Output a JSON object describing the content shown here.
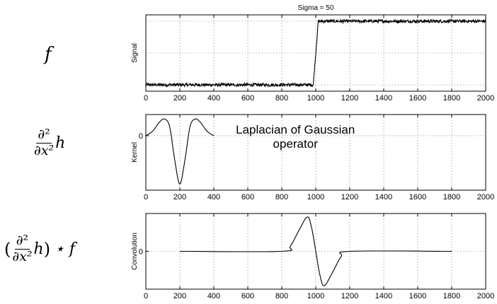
{
  "formulas": {
    "f": "f",
    "d2": "∂²",
    "dx2": "∂x²",
    "h": "h",
    "open_paren": "(",
    "close_paren": ")",
    "star_f": "⋆ f"
  },
  "chart_data": [
    {
      "type": "line",
      "title": "Sigma = 50",
      "ylabel": "Signal",
      "xlim": [
        0,
        2000
      ],
      "ylim": [
        -0.1,
        1.1
      ],
      "grid": "dotted",
      "x_ticks": [
        0,
        200,
        400,
        600,
        800,
        1000,
        1200,
        1400,
        1600,
        1800,
        2000
      ],
      "y_ticks": [],
      "series": [
        {
          "description": "noisy step",
          "x": [
            0,
            985,
            1000,
            1015,
            2000
          ],
          "y": [
            0.0,
            0.0,
            0.5,
            1.0,
            1.0
          ],
          "noise": 0.025
        }
      ]
    },
    {
      "type": "line",
      "ylabel": "Kernel",
      "annotation": "Laplacian of Gaussian\noperator",
      "xlim": [
        0,
        2000
      ],
      "ylim": [
        -1.8,
        0.7
      ],
      "grid": "dotted",
      "x_ticks": [
        0,
        200,
        400,
        600,
        800,
        1000,
        1200,
        1400,
        1600,
        1800,
        2000
      ],
      "y_ticks": [
        0
      ],
      "series": [
        {
          "description": "Laplacian of Gaussian kernel",
          "x": [
            0,
            40,
            80,
            110,
            140,
            170,
            200,
            230,
            260,
            290,
            320,
            360,
            400
          ],
          "y": [
            0.0,
            0.15,
            0.45,
            0.55,
            0.3,
            -0.8,
            -1.6,
            -0.8,
            0.3,
            0.55,
            0.45,
            0.15,
            0.0
          ]
        }
      ]
    },
    {
      "type": "line",
      "ylabel": "Convolution",
      "xlim": [
        0,
        2000
      ],
      "ylim": [
        -1.1,
        1.1
      ],
      "grid": "dotted",
      "x_ticks": [
        0,
        200,
        400,
        600,
        800,
        1000,
        1200,
        1400,
        1600,
        1800,
        2000
      ],
      "y_ticks": [
        0
      ],
      "series": [
        {
          "description": "convolution output",
          "x": [
            200,
            800,
            850,
            900,
            950,
            975,
            1000,
            1025,
            1050,
            1100,
            1150,
            1200,
            1800
          ],
          "y": [
            0.0,
            0.0,
            0.15,
            0.6,
            1.0,
            0.7,
            0.0,
            -0.7,
            -1.0,
            -0.6,
            -0.15,
            0.0,
            0.0
          ]
        }
      ]
    }
  ]
}
